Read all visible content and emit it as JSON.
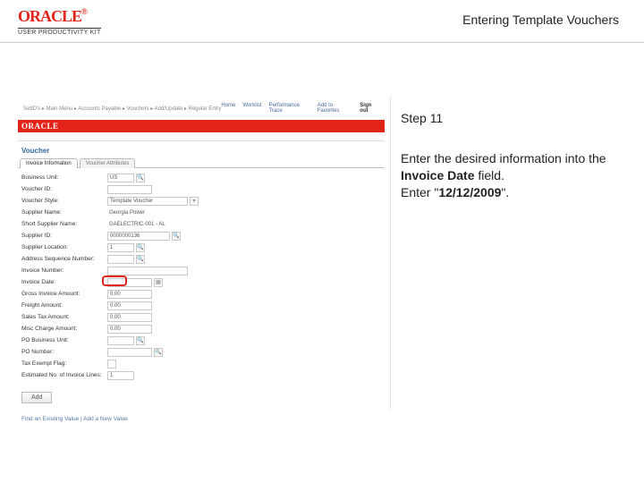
{
  "header": {
    "logo_text": "ORACLE",
    "logo_reg": "®",
    "upk": "USER PRODUCTIVITY KIT",
    "page_title": "Entering Template Vouchers"
  },
  "app": {
    "breadcrumb": "SetID's   ▸   Main Menu   ▸   Accounts Payable   ▸   Vouchers   ▸   Add/Update   ▸   Regular Entry",
    "nav_links": [
      "Home",
      "Worklist",
      "Performance Trace",
      "Add to Favorites"
    ],
    "nav_signout": "Sign out",
    "red_bar": "ORACLE",
    "section": "Voucher",
    "tabs": [
      "Invoice Information",
      "Voucher Attributes"
    ],
    "tab_active": 0,
    "fields": [
      {
        "label": "Business Unit:",
        "value": "US",
        "width": "w30",
        "icon": "search"
      },
      {
        "label": "Voucher ID:",
        "value": "",
        "width": "w50"
      },
      {
        "label": "Voucher Style:",
        "value": "Template Voucher",
        "width": "w90",
        "icon": "dropdown"
      },
      {
        "label": "Supplier Name:",
        "value": "Georgia Power",
        "width": "w90",
        "readonly": true
      },
      {
        "label": "Short Supplier Name:",
        "value": "GAELECTRIC-001 - AL",
        "width": "w120",
        "readonly": true
      },
      {
        "label": "Supplier ID:",
        "value": "0000000136",
        "width": "w70",
        "icon": "search"
      },
      {
        "label": "Supplier Location:",
        "value": "1",
        "width": "w30",
        "icon": "search"
      },
      {
        "label": "Address Sequence Number:",
        "value": "",
        "width": "w30",
        "icon": "search"
      },
      {
        "label": "Invoice Number:",
        "value": "",
        "width": "w90"
      },
      {
        "label": "Invoice Date:",
        "value": "",
        "width": "w50",
        "icon": "calendar",
        "highlight": true
      },
      {
        "label": "Gross Invoice Amount:",
        "value": "0.00",
        "width": "w50"
      },
      {
        "label": "Freight Amount:",
        "value": "0.00",
        "width": "w50"
      },
      {
        "label": "Sales Tax Amount:",
        "value": "0.00",
        "width": "w50"
      },
      {
        "label": "Misc Charge Amount:",
        "value": "0.00",
        "width": "w50"
      },
      {
        "label": "PO Business Unit:",
        "value": "",
        "width": "w30",
        "icon": "search"
      },
      {
        "label": "PO Number:",
        "value": "",
        "width": "w50",
        "icon": "search"
      },
      {
        "label": "Tax Exempt Flag:",
        "value": "",
        "width": "w30",
        "checkbox": true
      },
      {
        "label": "Estimated No. of Invoice Lines:",
        "value": "1",
        "width": "w30"
      }
    ],
    "add_button": "Add",
    "footer": "Find an Existing Value   |   Add a New Value"
  },
  "panel": {
    "step": "Step 11",
    "body_1": "Enter the desired information into the ",
    "body_bold1": "Invoice Date",
    "body_2": " field.",
    "body_3": "Enter \"",
    "body_bold2": "12/12/2009",
    "body_4": "\"."
  },
  "colors": {
    "oracle_red": "#e2231a",
    "link_blue": "#4a6a9a",
    "border_gray": "#c8c8c8"
  }
}
